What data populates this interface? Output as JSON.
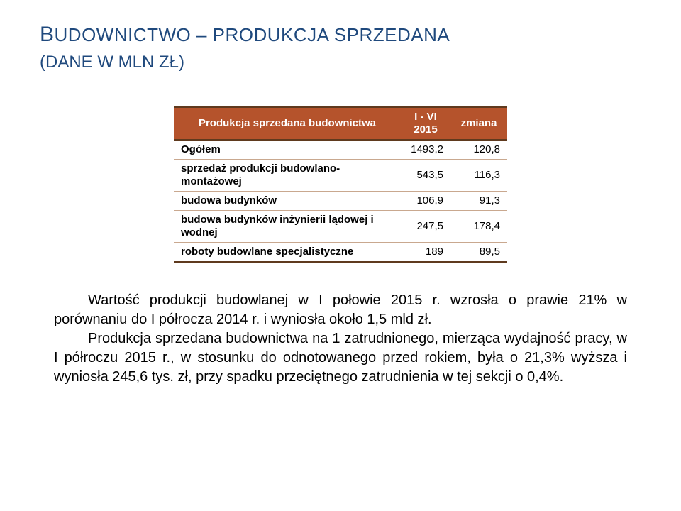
{
  "title_main_pre": "B",
  "title_main_rest": "UDOWNICTWO – PRODUKCJA SPRZEDANA",
  "subtitle": "(DANE W MLN ZŁ)",
  "colors": {
    "heading": "#1f497d",
    "table_header_bg": "#b5532c",
    "table_border_dark": "#5f3a1e",
    "table_border_light": "#c9a88f",
    "text": "#000000",
    "background": "#ffffff"
  },
  "table": {
    "header": {
      "label": "Produkcja sprzedana budownictwa",
      "col_ivi_line1": "I - VI",
      "col_ivi_line2": "2015",
      "col_zmiana": "zmiana"
    },
    "rows": [
      {
        "label": "Ogółem",
        "v1": "1493,2",
        "v2": "120,8"
      },
      {
        "label": "sprzedaż produkcji budowlano-montażowej",
        "v1": "543,5",
        "v2": "116,3"
      },
      {
        "label": "budowa budynków",
        "v1": "106,9",
        "v2": "91,3"
      },
      {
        "label": "budowa budynków inżynierii lądowej i wodnej",
        "v1": "247,5",
        "v2": "178,4"
      },
      {
        "label": "roboty budowlane specjalistyczne",
        "v1": "189",
        "v2": "89,5"
      }
    ]
  },
  "paragraph": {
    "p1": "Wartość produkcji budowlanej w I połowie 2015 r. wzrosła o prawie 21% w porównaniu do I półrocza 2014 r. i wyniosła około 1,5 mld zł.",
    "p2": "Produkcja sprzedana budownictwa na 1 zatrudnionego, mierząca wydajność pracy, w I półroczu 2015 r., w stosunku do odnotowanego przed rokiem, była o 21,3% wyższa i wyniosła 245,6 tys. zł, przy spadku przeciętnego zatrudnienia w tej sekcji o 0,4%."
  }
}
